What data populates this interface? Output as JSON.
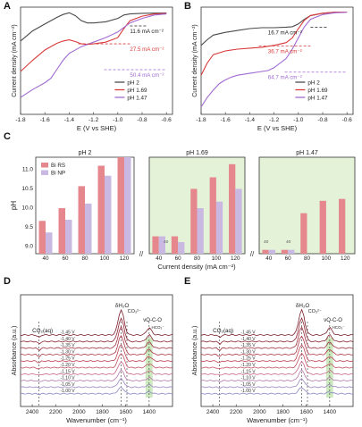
{
  "chart_data": [
    {
      "panel": "A",
      "type": "line",
      "xlabel": "E (V vs SHE)",
      "ylabel": "Current density (mA cm⁻²)",
      "xlim": [
        -1.8,
        -0.55
      ],
      "ylim": [
        -90,
        5
      ],
      "xticks": [
        "-1.8",
        "-1.6",
        "-1.4",
        "-1.2",
        "-1.0",
        "-0.8",
        "-0.6"
      ],
      "xtick_values": [
        -1.8,
        -1.6,
        -1.4,
        -1.2,
        -1.0,
        -0.8,
        -0.6
      ],
      "legend": "bottom-right",
      "series": [
        {
          "name": "pH 2",
          "color": "#4a4a4a",
          "x": [
            -1.8,
            -1.7,
            -1.6,
            -1.5,
            -1.45,
            -1.4,
            -1.35,
            -1.3,
            -1.25,
            -1.2,
            -1.1,
            -1.0,
            -0.95,
            -0.9,
            -0.8,
            -0.7,
            -0.6
          ],
          "y": [
            -25,
            -16,
            -10,
            -4,
            -1.5,
            0,
            -2.5,
            -7,
            -9,
            -9,
            -8,
            -5,
            -2,
            -1,
            -0.5,
            -0.3,
            -0.2
          ]
        },
        {
          "name": "pH 1.69",
          "color": "#d93a3a",
          "x": [
            -1.8,
            -1.7,
            -1.6,
            -1.5,
            -1.45,
            -1.4,
            -1.35,
            -1.3,
            -1.25,
            -1.2,
            -1.1,
            -1.0,
            -0.95,
            -0.9,
            -0.8,
            -0.7,
            -0.6
          ],
          "y": [
            -52,
            -42,
            -33,
            -27,
            -25,
            -24,
            -25.5,
            -27.5,
            -28,
            -27.5,
            -26,
            -22,
            -14,
            -7,
            -3,
            -1,
            -0.5
          ]
        },
        {
          "name": "pH 1.47",
          "color": "#a06bd0",
          "x": [
            -1.8,
            -1.7,
            -1.6,
            -1.55,
            -1.5,
            -1.45,
            -1.4,
            -1.3,
            -1.2,
            -1.1,
            -1.0,
            -0.95,
            -0.9,
            -0.8,
            -0.7,
            -0.6
          ],
          "y": [
            -75,
            -68,
            -62,
            -58,
            -50,
            -42,
            -36,
            -30,
            -26,
            -22,
            -17,
            -13,
            -9,
            -5,
            -2,
            -1
          ]
        }
      ],
      "annotations": [
        {
          "text": "11.6 mA cm⁻²",
          "color": "#222222",
          "y": -11.6
        },
        {
          "text": "27.5 mA cm⁻²",
          "color": "#d93a3a",
          "y": -27.5
        },
        {
          "text": "50.4 mA cm⁻²",
          "color": "#a06bd0",
          "y": -50.4
        }
      ]
    },
    {
      "panel": "B",
      "type": "line",
      "xlabel": "E (V vs SHE)",
      "ylabel": "Current density (mA cm⁻²)",
      "xlim": [
        -1.8,
        -0.55
      ],
      "ylim": [
        -110,
        5
      ],
      "xticks": [
        "-1.8",
        "-1.6",
        "-1.4",
        "-1.2",
        "-1.0",
        "-0.8",
        "-0.6"
      ],
      "xtick_values": [
        -1.8,
        -1.6,
        -1.4,
        -1.2,
        -1.0,
        -0.8,
        -0.6
      ],
      "legend": "bottom-right",
      "series": [
        {
          "name": "pH 2",
          "color": "#4a4a4a",
          "x": [
            -1.8,
            -1.75,
            -1.7,
            -1.6,
            -1.5,
            -1.4,
            -1.3,
            -1.2,
            -1.1,
            -1.05,
            -1.0,
            -0.95,
            -0.9,
            -0.8,
            -0.7,
            -0.6
          ],
          "y": [
            -36,
            -30,
            -25,
            -22,
            -20,
            -18,
            -17,
            -17,
            -16.5,
            -16,
            -13,
            -8,
            -4,
            -1.5,
            -0.5,
            -0.3
          ]
        },
        {
          "name": "pH 1.69",
          "color": "#d93a3a",
          "x": [
            -1.8,
            -1.75,
            -1.7,
            -1.6,
            -1.5,
            -1.4,
            -1.3,
            -1.25,
            -1.2,
            -1.1,
            -1.05,
            -1.0,
            -0.95,
            -0.9,
            -0.8,
            -0.7,
            -0.6
          ],
          "y": [
            -68,
            -55,
            -46,
            -42,
            -40,
            -39,
            -38,
            -37,
            -36,
            -33,
            -28,
            -18,
            -9,
            -4,
            -1.5,
            -0.5,
            -0.3
          ]
        },
        {
          "name": "pH 1.47",
          "color": "#a06bd0",
          "x": [
            -1.8,
            -1.75,
            -1.7,
            -1.65,
            -1.6,
            -1.55,
            -1.5,
            -1.4,
            -1.3,
            -1.25,
            -1.2,
            -1.1,
            -1.05,
            -1.0,
            -0.95,
            -0.9,
            -0.8,
            -0.7,
            -0.6
          ],
          "y": [
            -102,
            -92,
            -84,
            -77,
            -73,
            -70,
            -68,
            -66,
            -64,
            -63,
            -60,
            -50,
            -40,
            -28,
            -16,
            -8,
            -3,
            -1,
            -0.5
          ]
        }
      ],
      "annotations": [
        {
          "text": "16.7 mA cm⁻²",
          "color": "#222222",
          "y": -16.7
        },
        {
          "text": "36.7 mA cm⁻²",
          "color": "#d93a3a",
          "y": -36.7
        },
        {
          "text": "64.7 mA cm⁻²",
          "color": "#a06bd0",
          "y": -64.7
        }
      ]
    },
    {
      "panel": "C",
      "type": "bar",
      "ylabel": "pH",
      "xlabel": "Current density (mA cm⁻²)",
      "ylim": [
        8.8,
        11.3
      ],
      "yticks": [
        "9.0",
        "9.5",
        "10.0",
        "10.5",
        "11.0"
      ],
      "ytick_values": [
        9.0,
        9.5,
        10.0,
        10.5,
        11.0
      ],
      "legend": "top-left",
      "legend_entries": [
        {
          "name": "Bi RS",
          "color": "#e5878c"
        },
        {
          "name": "Bi NP",
          "color": "#c8b8e2"
        }
      ],
      "groups": [
        {
          "title": "pH 2",
          "categories": [
            "40",
            "60",
            "80",
            "100",
            "120"
          ],
          "series": [
            {
              "name": "Bi RS",
              "values": [
                9.65,
                9.98,
                10.55,
                11.08,
                11.3
              ]
            },
            {
              "name": "Bi NP",
              "values": [
                9.35,
                9.68,
                10.1,
                10.82,
                11.3
              ]
            }
          ],
          "value_labels": []
        },
        {
          "title": "pH 1.69",
          "categories": [
            "40",
            "60",
            "80",
            "100",
            "120"
          ],
          "series": [
            {
              "name": "Bi RS",
              "values": [
                9.25,
                9.25,
                10.48,
                10.78,
                11.12
              ]
            },
            {
              "name": "Bi NP",
              "values": [
                9.25,
                9.1,
                9.98,
                10.15,
                10.48
              ]
            }
          ],
          "value_labels": [
            "40"
          ]
        },
        {
          "title": "pH 1.47",
          "categories": [
            "40",
            "60",
            "80",
            "100",
            "120"
          ],
          "series": [
            {
              "name": "Bi RS",
              "values": [
                8.9,
                8.9,
                9.85,
                10.17,
                10.22
              ]
            },
            {
              "name": "Bi NP",
              "values": [
                8.9,
                8.9,
                null,
                null,
                null
              ]
            }
          ],
          "value_labels": [
            "40",
            "40"
          ]
        }
      ]
    },
    {
      "panel": "D",
      "type": "line",
      "xlabel": "Wavenumber (cm⁻¹)",
      "ylabel": "Absorbance (a.u.)",
      "xlim": [
        2500,
        1200
      ],
      "xticks": [
        "2400",
        "2200",
        "2000",
        "1800",
        "1600",
        "1400"
      ],
      "xtick_values": [
        2400,
        2200,
        2000,
        1800,
        1600,
        1400
      ],
      "potentials": [
        "-1.45 V",
        "-1.40 V",
        "-1.35 V",
        "-1.30 V",
        "-1.25 V",
        "-1.20 V",
        "-1.15 V",
        "-1.10 V",
        "-1.05 V",
        "-1.00 V"
      ],
      "peaks": [
        {
          "label": "CO₂(aq)",
          "position": 2343
        },
        {
          "label": "δH₂O",
          "position": 1640
        },
        {
          "label": "CO₃²⁻",
          "position": 1590
        },
        {
          "label": "νO-C-O",
          "position": 1400
        },
        {
          "label": "HCO₃⁻",
          "position": 1360
        }
      ]
    },
    {
      "panel": "E",
      "type": "line",
      "xlabel": "Wavenumber (cm⁻¹)",
      "ylabel": "Absorbance (a.u.)",
      "xlim": [
        2500,
        1200
      ],
      "xticks": [
        "2400",
        "2200",
        "2000",
        "1800",
        "1600",
        "1400"
      ],
      "xtick_values": [
        2400,
        2200,
        2000,
        1800,
        1600,
        1400
      ],
      "potentials": [
        "-1.45 V",
        "-1.40 V",
        "-1.35 V",
        "-1.30 V",
        "-1.25 V",
        "-1.20 V",
        "-1.15 V",
        "-1.10 V",
        "-1.05 V",
        "-1.00 V"
      ],
      "peaks": [
        {
          "label": "CO₂(aq)",
          "position": 2343
        },
        {
          "label": "δH₂O",
          "position": 1640
        },
        {
          "label": "CO₃²⁻",
          "position": 1590
        },
        {
          "label": "νO-C-O",
          "position": 1400
        },
        {
          "label": "HCO₃⁻",
          "position": 1360
        }
      ]
    }
  ]
}
